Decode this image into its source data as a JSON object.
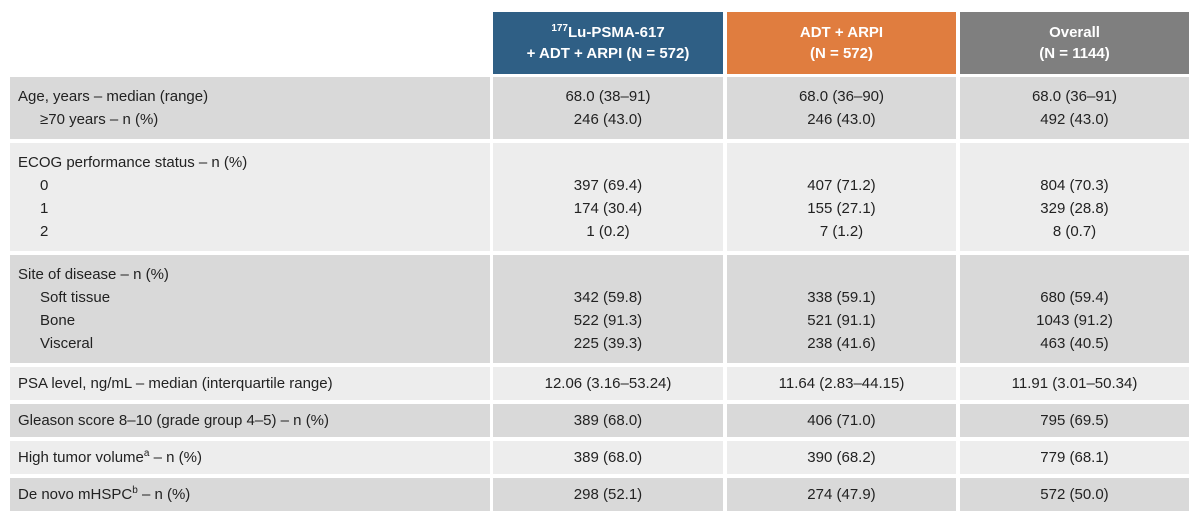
{
  "header": {
    "columns": [
      {
        "sup": "177",
        "line1": "Lu-PSMA-617",
        "line2": "+ ADT + ARPI (N = 572)"
      },
      {
        "line1": "ADT + ARPI",
        "line2": "(N = 572)"
      },
      {
        "line1": "Overall",
        "line2": "(N = 1144)"
      }
    ]
  },
  "groups": [
    {
      "rows": [
        {
          "label": "Age, years – median (range)",
          "values": [
            "68.0 (38–91)",
            "68.0 (36–90)",
            "68.0 (36–91)"
          ]
        },
        {
          "label": "≥70 years – n (%)",
          "indent": true,
          "values": [
            "246 (43.0)",
            "246 (43.0)",
            "492 (43.0)"
          ]
        }
      ]
    },
    {
      "rows": [
        {
          "label": "ECOG performance status – n (%)"
        },
        {
          "label": "0",
          "indent": true,
          "values": [
            "397 (69.4)",
            "407 (71.2)",
            "804 (70.3)"
          ]
        },
        {
          "label": "1",
          "indent": true,
          "values": [
            "174 (30.4)",
            "155 (27.1)",
            "329 (28.8)"
          ]
        },
        {
          "label": "2",
          "indent": true,
          "values": [
            "1 (0.2)",
            "7 (1.2)",
            "8 (0.7)"
          ]
        }
      ]
    },
    {
      "rows": [
        {
          "label": "Site of disease – n (%)"
        },
        {
          "label": "Soft tissue",
          "indent": true,
          "values": [
            "342 (59.8)",
            "338 (59.1)",
            "680 (59.4)"
          ]
        },
        {
          "label": "Bone",
          "indent": true,
          "values": [
            "522 (91.3)",
            "521 (91.1)",
            "1043 (91.2)"
          ]
        },
        {
          "label": "Visceral",
          "indent": true,
          "values": [
            "225 (39.3)",
            "238 (41.6)",
            "463 (40.5)"
          ]
        }
      ]
    },
    {
      "rows": [
        {
          "label": "PSA level, ng/mL – median (interquartile range)",
          "values": [
            "12.06 (3.16–53.24)",
            "11.64 (2.83–44.15)",
            "11.91 (3.01–50.34)"
          ]
        }
      ]
    },
    {
      "rows": [
        {
          "label": "Gleason score 8–10 (grade group 4–5) – n (%)",
          "values": [
            "389 (68.0)",
            "406 (71.0)",
            "795 (69.5)"
          ]
        }
      ]
    },
    {
      "rows": [
        {
          "label": "High tumor volume",
          "sup": "a",
          "label_rest": " – n (%)",
          "values": [
            "389 (68.0)",
            "390 (68.2)",
            "779 (68.1)"
          ]
        }
      ]
    },
    {
      "rows": [
        {
          "label": "De novo mHSPC",
          "sup": "b",
          "label_rest": " – n (%)",
          "values": [
            "298 (52.1)",
            "274 (47.9)",
            "572 (50.0)"
          ]
        }
      ]
    }
  ]
}
